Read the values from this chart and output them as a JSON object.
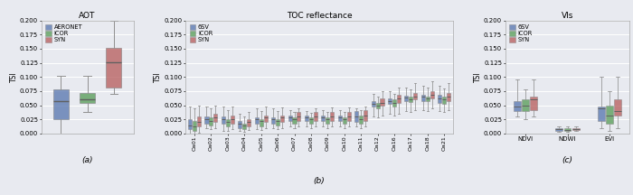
{
  "fig_width": 7.0,
  "fig_height": 2.16,
  "dpi": 100,
  "bg_color": "#e8eaf0",
  "colors": {
    "aeronet_6sv": "#5a78b0",
    "icor": "#5a9e5a",
    "syn": "#b86060"
  },
  "panel_a": {
    "title": "AOT",
    "xlabel": "(a)",
    "ylabel": "TSI",
    "ylim": [
      0.0,
      0.2
    ],
    "yticks": [
      0.0,
      0.025,
      0.05,
      0.075,
      0.1,
      0.125,
      0.15,
      0.175,
      0.2
    ],
    "legend": [
      "AERONET",
      "iCOR",
      "SYN"
    ],
    "boxes": {
      "aeronet": {
        "whislo": 0.0,
        "q1": 0.026,
        "med": 0.058,
        "q3": 0.078,
        "whishi": 0.102
      },
      "icor": {
        "whislo": 0.038,
        "q1": 0.055,
        "med": 0.06,
        "q3": 0.072,
        "whishi": 0.102
      },
      "syn": {
        "whislo": 0.07,
        "q1": 0.082,
        "med": 0.126,
        "q3": 0.152,
        "whishi": 0.2
      }
    }
  },
  "panel_b": {
    "title": "TOC reflectance",
    "xlabel": "(b)",
    "ylabel": "TSI",
    "ylim": [
      0.0,
      0.2
    ],
    "yticks": [
      0.0,
      0.025,
      0.05,
      0.075,
      0.1,
      0.125,
      0.15,
      0.175,
      0.2
    ],
    "legend": [
      "6SV",
      "iCOR",
      "SYN"
    ],
    "bands": [
      "Oa01",
      "Oa02",
      "Oa03",
      "Oa04",
      "Oa05",
      "Oa06",
      "Oa07",
      "Oa08",
      "Oa09",
      "Oa10",
      "Oa11",
      "Oa12",
      "Oa16",
      "Oa17",
      "Oa18",
      "Oa21"
    ],
    "sixsv": {
      "whislo": [
        0.0,
        0.01,
        0.005,
        0.005,
        0.008,
        0.01,
        0.013,
        0.012,
        0.013,
        0.013,
        0.012,
        0.03,
        0.035,
        0.04,
        0.042,
        0.04
      ],
      "q1": [
        0.008,
        0.018,
        0.018,
        0.01,
        0.018,
        0.018,
        0.022,
        0.022,
        0.022,
        0.022,
        0.02,
        0.048,
        0.052,
        0.058,
        0.058,
        0.055
      ],
      "med": [
        0.015,
        0.025,
        0.025,
        0.018,
        0.025,
        0.025,
        0.028,
        0.028,
        0.028,
        0.028,
        0.03,
        0.053,
        0.057,
        0.063,
        0.065,
        0.062
      ],
      "q3": [
        0.025,
        0.03,
        0.03,
        0.022,
        0.028,
        0.028,
        0.032,
        0.032,
        0.032,
        0.032,
        0.04,
        0.058,
        0.062,
        0.067,
        0.068,
        0.068
      ],
      "whishi": [
        0.048,
        0.048,
        0.048,
        0.035,
        0.045,
        0.044,
        0.042,
        0.04,
        0.042,
        0.042,
        0.045,
        0.07,
        0.075,
        0.082,
        0.085,
        0.085
      ]
    },
    "icor": {
      "whislo": [
        0.0,
        0.008,
        0.005,
        0.003,
        0.006,
        0.008,
        0.01,
        0.01,
        0.01,
        0.01,
        0.01,
        0.028,
        0.032,
        0.038,
        0.04,
        0.038
      ],
      "q1": [
        0.005,
        0.015,
        0.013,
        0.008,
        0.013,
        0.015,
        0.018,
        0.018,
        0.018,
        0.018,
        0.018,
        0.045,
        0.048,
        0.056,
        0.058,
        0.052
      ],
      "med": [
        0.012,
        0.022,
        0.02,
        0.015,
        0.022,
        0.022,
        0.025,
        0.025,
        0.025,
        0.025,
        0.025,
        0.05,
        0.055,
        0.06,
        0.062,
        0.06
      ],
      "q3": [
        0.022,
        0.028,
        0.025,
        0.018,
        0.025,
        0.025,
        0.028,
        0.028,
        0.028,
        0.028,
        0.032,
        0.055,
        0.06,
        0.065,
        0.066,
        0.065
      ],
      "whishi": [
        0.045,
        0.045,
        0.042,
        0.03,
        0.04,
        0.04,
        0.038,
        0.036,
        0.038,
        0.038,
        0.042,
        0.065,
        0.07,
        0.078,
        0.082,
        0.08
      ]
    },
    "syn": {
      "whislo": [
        0.002,
        0.01,
        0.008,
        0.006,
        0.01,
        0.01,
        0.012,
        0.012,
        0.012,
        0.012,
        0.012,
        0.032,
        0.035,
        0.042,
        0.044,
        0.042
      ],
      "q1": [
        0.012,
        0.02,
        0.018,
        0.012,
        0.02,
        0.02,
        0.022,
        0.022,
        0.022,
        0.022,
        0.022,
        0.05,
        0.055,
        0.06,
        0.062,
        0.058
      ],
      "med": [
        0.02,
        0.028,
        0.025,
        0.02,
        0.028,
        0.028,
        0.03,
        0.03,
        0.03,
        0.03,
        0.032,
        0.055,
        0.062,
        0.065,
        0.068,
        0.065
      ],
      "q3": [
        0.03,
        0.035,
        0.032,
        0.026,
        0.032,
        0.032,
        0.038,
        0.038,
        0.038,
        0.038,
        0.042,
        0.062,
        0.068,
        0.072,
        0.075,
        0.072
      ],
      "whishi": [
        0.05,
        0.05,
        0.048,
        0.038,
        0.048,
        0.046,
        0.045,
        0.045,
        0.046,
        0.046,
        0.048,
        0.075,
        0.082,
        0.09,
        0.092,
        0.09
      ]
    }
  },
  "panel_c": {
    "title": "VIs",
    "xlabel": "(c)",
    "ylabel": "TSI",
    "ylim": [
      0.0,
      0.2
    ],
    "yticks": [
      0.0,
      0.025,
      0.05,
      0.075,
      0.1,
      0.125,
      0.15,
      0.175,
      0.2
    ],
    "legend": [
      "6SV",
      "iCOR",
      "SYN"
    ],
    "categories": [
      "NDVI",
      "NDWI",
      "EVI"
    ],
    "sixsv": {
      "NDVI": {
        "whislo": 0.03,
        "q1": 0.04,
        "med": 0.048,
        "q3": 0.058,
        "whishi": 0.095
      },
      "NDWI": {
        "whislo": 0.003,
        "q1": 0.005,
        "med": 0.008,
        "q3": 0.01,
        "whishi": 0.013
      },
      "EVI": {
        "whislo": 0.01,
        "q1": 0.022,
        "med": 0.044,
        "q3": 0.048,
        "whishi": 0.1
      }
    },
    "icor": {
      "NDVI": {
        "whislo": 0.025,
        "q1": 0.04,
        "med": 0.05,
        "q3": 0.06,
        "whishi": 0.078
      },
      "NDWI": {
        "whislo": 0.003,
        "q1": 0.005,
        "med": 0.007,
        "q3": 0.01,
        "whishi": 0.012
      },
      "EVI": {
        "whislo": 0.005,
        "q1": 0.018,
        "med": 0.032,
        "q3": 0.05,
        "whishi": 0.075
      }
    },
    "syn": {
      "NDVI": {
        "whislo": 0.03,
        "q1": 0.042,
        "med": 0.06,
        "q3": 0.065,
        "whishi": 0.095
      },
      "NDWI": {
        "whislo": 0.004,
        "q1": 0.006,
        "med": 0.008,
        "q3": 0.01,
        "whishi": 0.012
      },
      "EVI": {
        "whislo": 0.01,
        "q1": 0.032,
        "med": 0.04,
        "q3": 0.06,
        "whishi": 0.1
      }
    }
  }
}
